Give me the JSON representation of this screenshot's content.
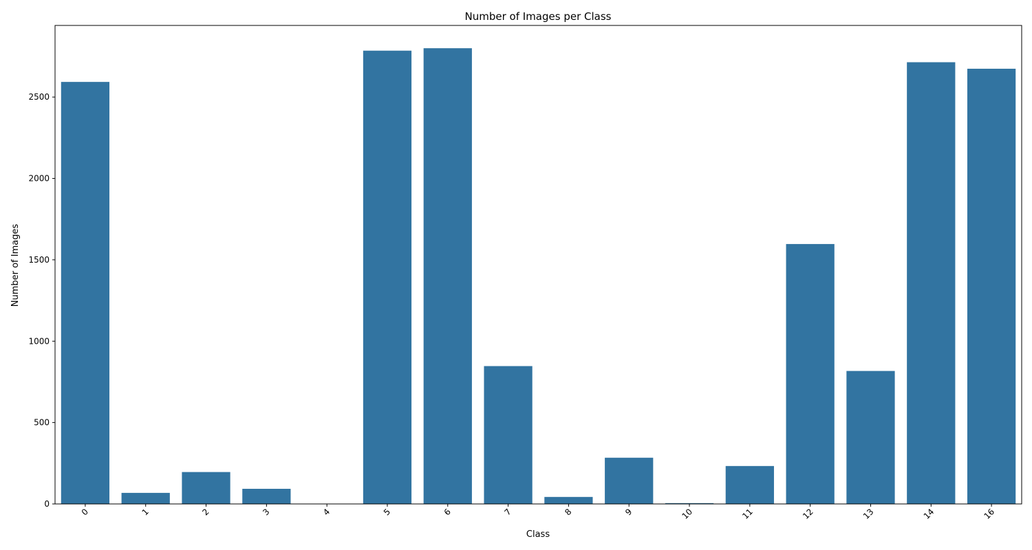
{
  "chart_data": {
    "type": "bar",
    "title": "Number of Images per Class",
    "xlabel": "Class",
    "ylabel": "Number of Images",
    "categories": [
      "0",
      "1",
      "2",
      "3",
      "4",
      "5",
      "6",
      "7",
      "8",
      "9",
      "10",
      "11",
      "12",
      "13",
      "14",
      "16"
    ],
    "values": [
      2593,
      68,
      196,
      93,
      2,
      2785,
      2800,
      847,
      43,
      284,
      5,
      233,
      1597,
      817,
      2714,
      2674
    ],
    "yticks": [
      0,
      500,
      1000,
      1500,
      2000,
      2500
    ],
    "ylim": [
      0,
      2940
    ],
    "grid": false,
    "legend": "none",
    "bar_color": "#3274a1",
    "x_tick_rotation": 45
  }
}
